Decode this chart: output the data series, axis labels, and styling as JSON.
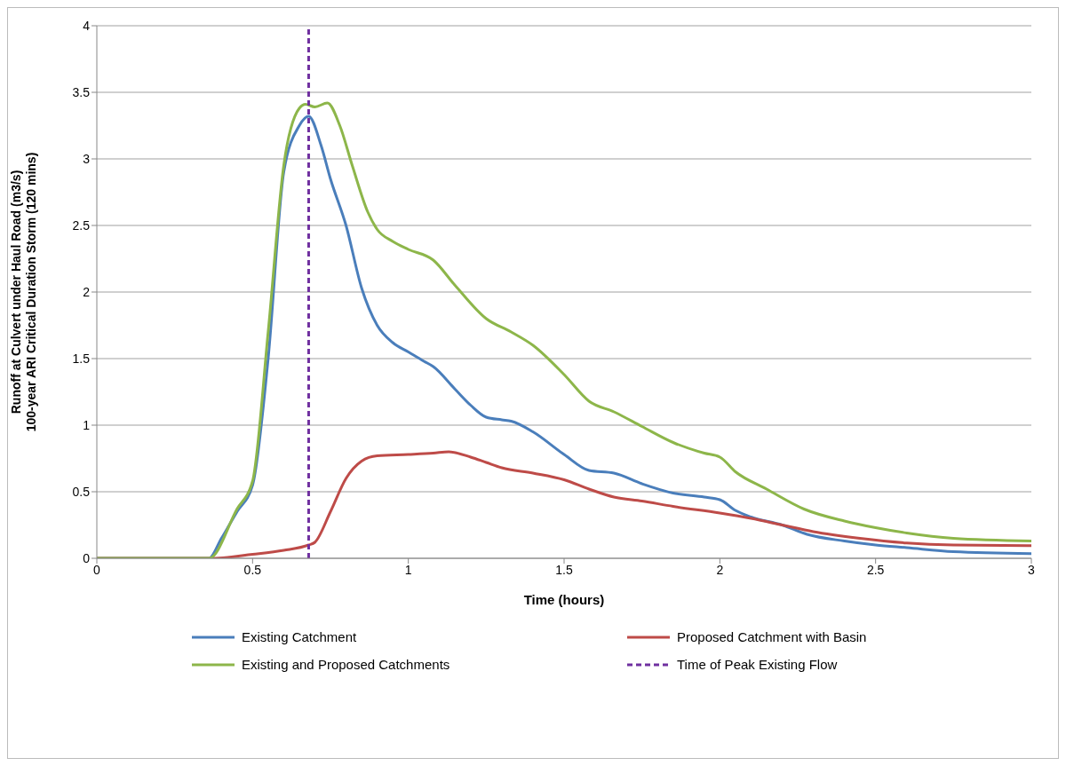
{
  "chart_data": {
    "type": "line",
    "xlabel": "Time (hours)",
    "ylabel": "Runoff at Culvert under Haul Road (m3/s)\n100-year ARI Critical Duration  Storm (120 mins)",
    "xlim": [
      0,
      3
    ],
    "xticks": [
      0,
      0.5,
      1,
      1.5,
      2,
      2.5,
      3
    ],
    "ylim": [
      0,
      4
    ],
    "yticks": [
      0,
      0.5,
      1,
      1.5,
      2,
      2.5,
      3,
      3.5,
      4
    ],
    "grid": "y",
    "legend": "bottom",
    "marker": "none",
    "line_style": "solid",
    "series": [
      {
        "name": "Existing Catchment",
        "color": "#4a7ebb",
        "x": [
          0,
          0.36,
          0.4,
          0.45,
          0.5,
          0.55,
          0.6,
          0.65,
          0.68,
          0.72,
          0.75,
          0.8,
          0.85,
          0.9,
          0.95,
          1.0,
          1.05,
          1.08,
          1.15,
          1.2,
          1.25,
          1.3,
          1.33,
          1.4,
          1.5,
          1.58,
          1.66,
          1.75,
          1.85,
          1.95,
          2.0,
          2.05,
          2.1,
          2.2,
          2.28,
          2.4,
          2.5,
          2.6,
          2.75,
          3.0
        ],
        "values": [
          0,
          0,
          0.15,
          0.35,
          0.55,
          1.5,
          2.9,
          3.25,
          3.32,
          3.1,
          2.85,
          2.5,
          2.03,
          1.75,
          1.62,
          1.55,
          1.48,
          1.44,
          1.27,
          1.15,
          1.06,
          1.04,
          1.03,
          0.95,
          0.78,
          0.66,
          0.64,
          0.56,
          0.49,
          0.46,
          0.44,
          0.36,
          0.31,
          0.25,
          0.18,
          0.13,
          0.1,
          0.08,
          0.05,
          0.035
        ]
      },
      {
        "name": "Proposed Catchment with Basin",
        "color": "#be4b48",
        "x": [
          0,
          0.37,
          0.5,
          0.6,
          0.68,
          0.7,
          0.75,
          0.8,
          0.85,
          0.9,
          1.0,
          1.08,
          1.13,
          1.2,
          1.25,
          1.3,
          1.4,
          1.5,
          1.58,
          1.66,
          1.75,
          1.85,
          2.0,
          2.1,
          2.2,
          2.3,
          2.45,
          2.6,
          2.75,
          3.0
        ],
        "values": [
          0,
          0,
          0.03,
          0.06,
          0.1,
          0.12,
          0.35,
          0.6,
          0.73,
          0.77,
          0.78,
          0.79,
          0.8,
          0.76,
          0.72,
          0.68,
          0.64,
          0.59,
          0.52,
          0.46,
          0.43,
          0.39,
          0.34,
          0.3,
          0.25,
          0.2,
          0.15,
          0.115,
          0.1,
          0.095
        ]
      },
      {
        "name": "Existing and Proposed Catchments",
        "color": "#8db64a",
        "x": [
          0,
          0.36,
          0.45,
          0.5,
          0.55,
          0.6,
          0.65,
          0.67,
          0.7,
          0.74,
          0.78,
          0.82,
          0.87,
          0.9,
          0.95,
          1.0,
          1.08,
          1.15,
          1.25,
          1.33,
          1.4,
          1.5,
          1.58,
          1.66,
          1.75,
          1.85,
          1.95,
          2.0,
          2.05,
          2.15,
          2.27,
          2.4,
          2.5,
          2.6,
          2.75,
          3.0
        ],
        "values": [
          0,
          0,
          0.37,
          0.58,
          1.7,
          2.95,
          3.38,
          3.41,
          3.39,
          3.42,
          3.25,
          2.95,
          2.6,
          2.47,
          2.38,
          2.32,
          2.24,
          2.05,
          1.8,
          1.7,
          1.6,
          1.38,
          1.18,
          1.1,
          0.99,
          0.87,
          0.79,
          0.76,
          0.65,
          0.52,
          0.37,
          0.28,
          0.23,
          0.19,
          0.15,
          0.13
        ]
      }
    ],
    "ref_lines": [
      {
        "axis": "x",
        "value": 0.68,
        "label": "Time of Peak Existing Flow",
        "color": "#7030a0",
        "line_style": "dashed"
      }
    ]
  }
}
